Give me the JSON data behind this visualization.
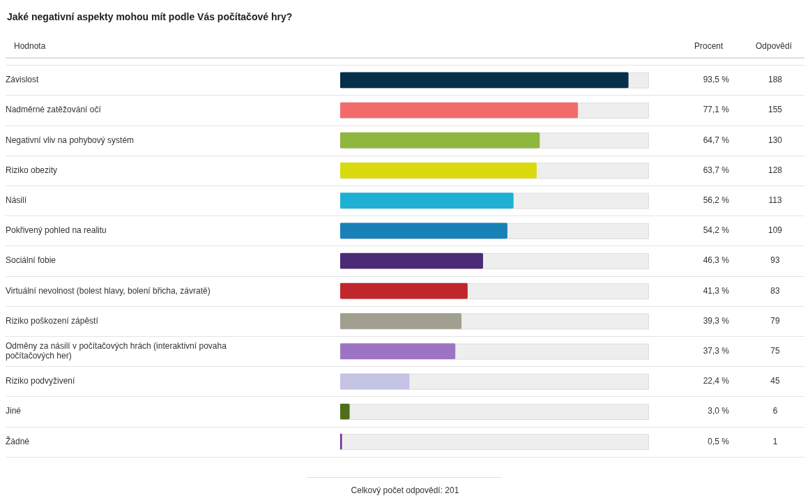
{
  "chart_data": {
    "type": "bar",
    "orientation": "horizontal",
    "title": "Jaké negativní aspekty mohou mít podle Vás počítačové hry?",
    "categories": [
      "Závislost",
      "Nadměrné zatěžování očí",
      "Negativní vliv na pohybový systém",
      "Riziko obezity",
      "Násilí",
      "Pokřivený pohled na realitu",
      "Sociální fobie",
      "Virtuální nevolnost (bolest hlavy, bolení břicha, závratě)",
      "Riziko poškození zápěstí",
      "Odměny za násilí v počítačových hrách (interaktivní povaha počítačových her)",
      "Riziko podvyživení",
      "Jiné",
      "Žádné"
    ],
    "values": [
      93.5,
      77.1,
      64.7,
      63.7,
      56.2,
      54.2,
      46.3,
      41.3,
      39.3,
      37.3,
      22.4,
      3.0,
      0.5
    ],
    "colors": [
      "#06304a",
      "#f26b6b",
      "#8fb63f",
      "#d9d90f",
      "#1fb0d4",
      "#1a80b8",
      "#4b2a78",
      "#c0272d",
      "#a19f8f",
      "#9d74c3",
      "#c5c3e4",
      "#4f6e1c",
      "#6b2c9a"
    ],
    "value_labels": [
      "93,5 %",
      "77,1 %",
      "64,7 %",
      "63,7 %",
      "56,2 %",
      "54,2 %",
      "46,3 %",
      "41,3 %",
      "39,3 %",
      "37,3 %",
      "22,4 %",
      "3,0 %",
      "0,5 %"
    ],
    "xlim": [
      0,
      100
    ],
    "tick_labels": "y",
    "grid": "y",
    "legend": false,
    "annotations": [
      "Hodnota",
      "Procent",
      "Odpovědí",
      "188",
      "155",
      "130",
      "128",
      "113",
      "109",
      "93",
      "83",
      "79",
      "75",
      "45",
      "6",
      "1",
      "Celkový počet odpovědí: 201"
    ]
  }
}
